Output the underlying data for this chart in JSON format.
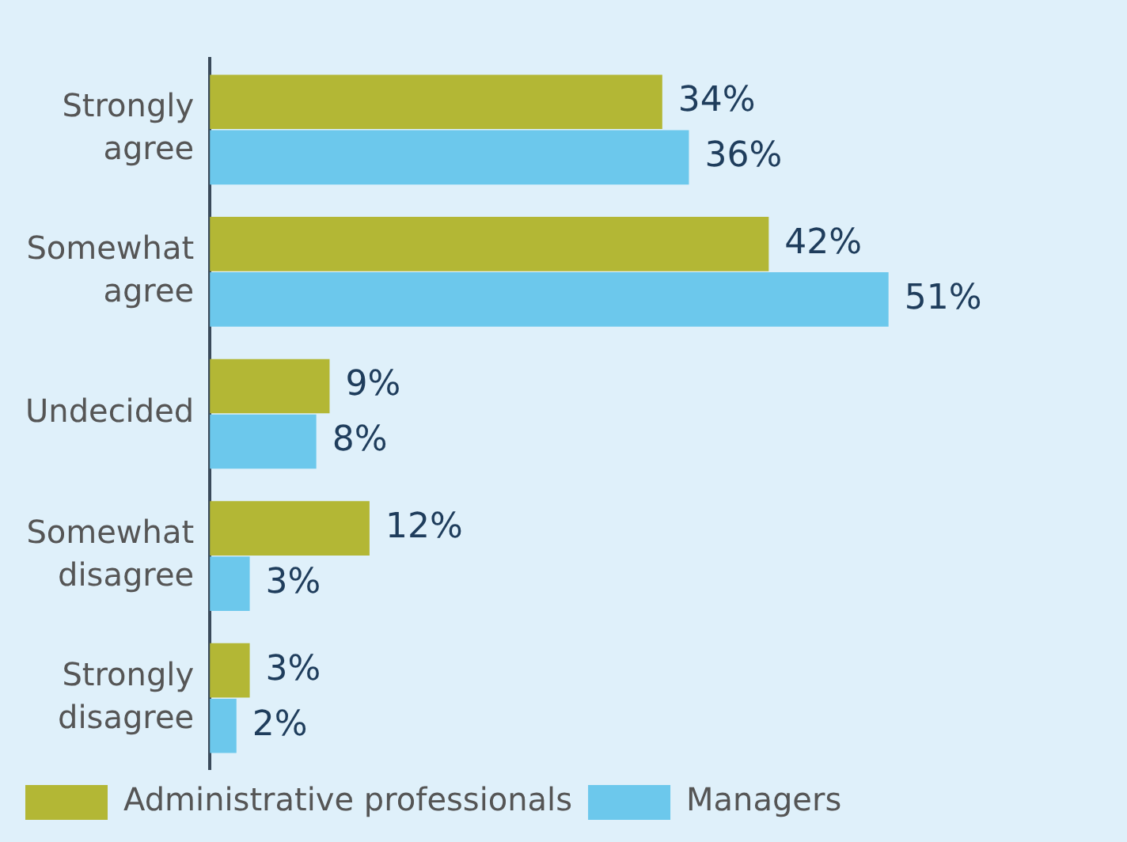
{
  "chart_data": {
    "type": "bar",
    "orientation": "horizontal",
    "categories": [
      "Strongly agree",
      "Somewhat agree",
      "Undecided",
      "Somewhat disagree",
      "Strongly disagree"
    ],
    "series": [
      {
        "name": "Administrative professionals",
        "color": "#b3b735",
        "values": [
          34,
          42,
          9,
          12,
          3
        ],
        "value_labels": [
          "34%",
          "42%",
          "9%",
          "12%",
          "3%"
        ]
      },
      {
        "name": "Managers",
        "color": "#6cc8ec",
        "values": [
          36,
          51,
          8,
          3,
          2
        ],
        "value_labels": [
          "36%",
          "51%",
          "8%",
          "3%",
          "2%"
        ]
      }
    ],
    "legend": "bottom left",
    "grid": false,
    "tick_labels": "y"
  }
}
